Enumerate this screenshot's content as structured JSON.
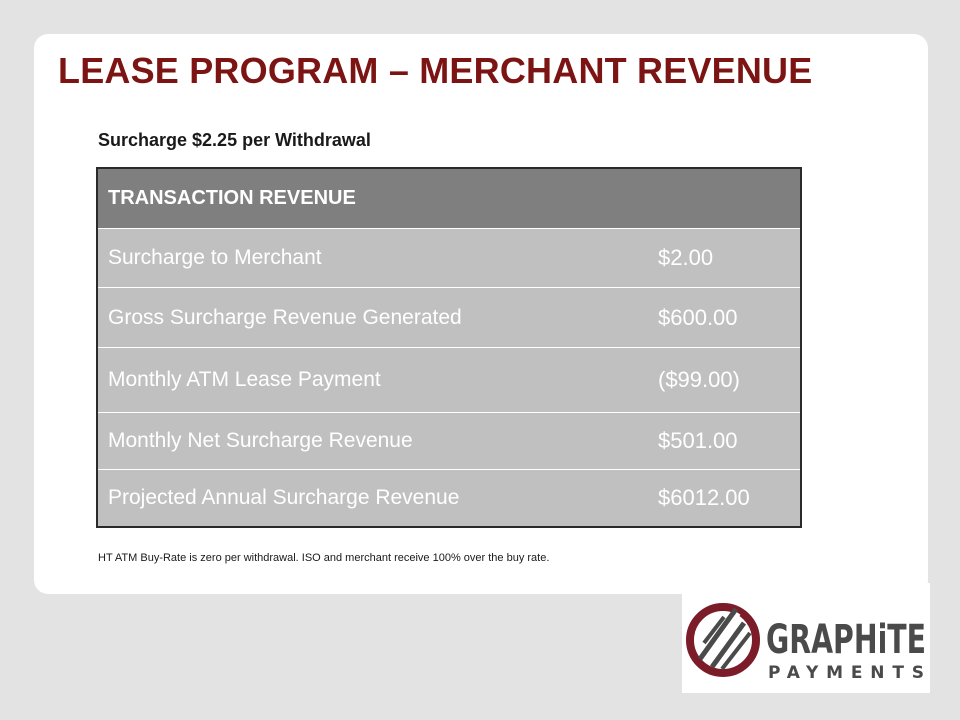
{
  "slide": {
    "title": "LEASE PROGRAM – MERCHANT REVENUE",
    "subtitle": "Surcharge $2.25 per Withdrawal",
    "footnote": "HT ATM Buy-Rate is zero per withdrawal. ISO and merchant receive 100% over the buy rate."
  },
  "table": {
    "header": "TRANSACTION REVENUE",
    "rows": [
      {
        "label": "Surcharge to Merchant",
        "value": "$2.00"
      },
      {
        "label": "Gross Surcharge Revenue Generated",
        "value": "$600.00"
      },
      {
        "label": "Monthly ATM Lease Payment",
        "value": "($99.00)"
      },
      {
        "label": "Monthly Net Surcharge Revenue",
        "value": "$501.00"
      },
      {
        "label": "Projected Annual Surcharge Revenue",
        "value": "$6012.00"
      }
    ]
  },
  "logo": {
    "line1": "GRAPHiTE",
    "line2": "PAYMENTS",
    "icon": "graphite-payments-logo-icon",
    "colors": {
      "maroon": "#7b1c28",
      "gray": "#4a4a4a"
    }
  }
}
